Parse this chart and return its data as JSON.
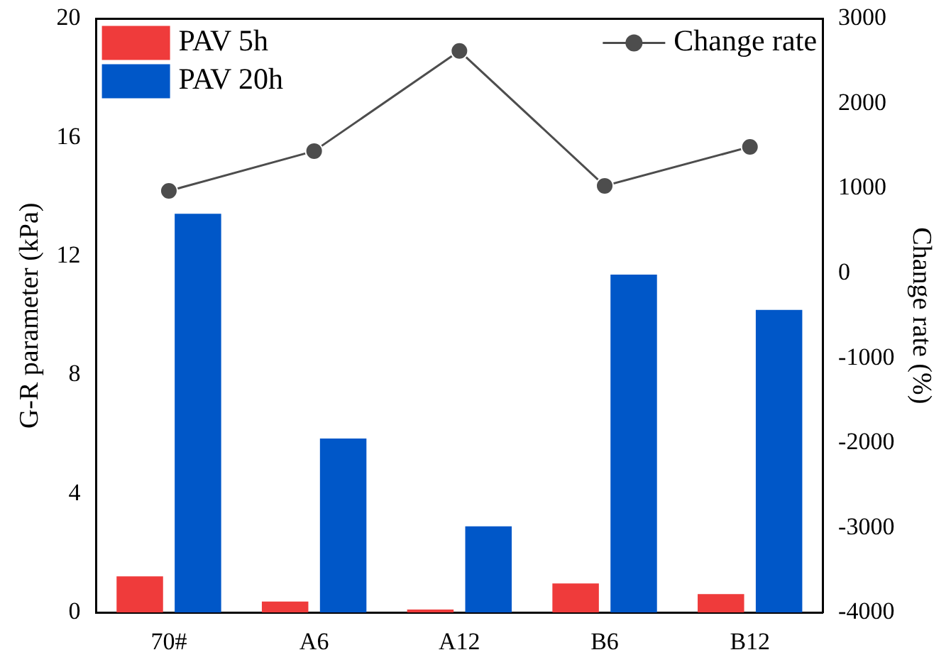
{
  "chart_data": {
    "type": "bar",
    "categories": [
      "70#",
      "A6",
      "A12",
      "B6",
      "B12"
    ],
    "series": [
      {
        "name": "PAV 5h",
        "color": "#ef3b3b",
        "values": [
          1.22,
          0.37,
          0.1,
          0.98,
          0.62
        ]
      },
      {
        "name": "PAV 20h",
        "color": "#0057c8",
        "values": [
          13.43,
          5.86,
          2.9,
          11.38,
          10.19
        ]
      },
      {
        "name": "Change rate",
        "type": "line",
        "axis": "y2",
        "color": "#4d4d4d",
        "values": [
          970,
          1440,
          2620,
          1030,
          1490
        ]
      }
    ],
    "ylabel": "G-R parameter (kPa)",
    "y2label": "Change rate (%)",
    "ylim": [
      0,
      20
    ],
    "yticks": [
      0,
      4,
      8,
      12,
      16,
      20
    ],
    "y2lim": [
      -4000,
      3000
    ],
    "y2ticks": [
      -4000,
      -3000,
      -2000,
      -1000,
      0,
      1000,
      2000,
      3000
    ],
    "grid": false,
    "legend": "top",
    "marker": "circle",
    "line_style": "solid"
  }
}
